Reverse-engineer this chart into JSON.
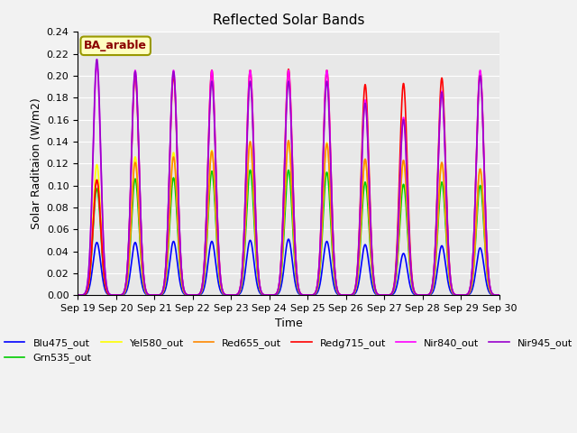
{
  "title": "Reflected Solar Bands",
  "xlabel": "Time",
  "ylabel": "Solar Raditaion (W/m2)",
  "annotation": "BA_arable",
  "ylim": [
    0,
    0.24
  ],
  "series_order": [
    "Blu475_out",
    "Grn535_out",
    "Yel580_out",
    "Red655_out",
    "Redg715_out",
    "Nir840_out",
    "Nir945_out"
  ],
  "colors": {
    "Blu475_out": "#0000ff",
    "Grn535_out": "#00cc00",
    "Yel580_out": "#ffff00",
    "Red655_out": "#ff8800",
    "Redg715_out": "#ff0000",
    "Nir840_out": "#ff00ff",
    "Nir945_out": "#9900cc"
  },
  "days": [
    "Sep 19",
    "Sep 20",
    "Sep 21",
    "Sep 22",
    "Sep 23",
    "Sep 24",
    "Sep 25",
    "Sep 26",
    "Sep 27",
    "Sep 28",
    "Sep 29",
    "Sep 30"
  ],
  "day_peaks": {
    "Blu475_out": [
      0.048,
      0.048,
      0.049,
      0.049,
      0.05,
      0.051,
      0.049,
      0.046,
      0.038,
      0.045,
      0.043
    ],
    "Grn535_out": [
      0.097,
      0.106,
      0.107,
      0.113,
      0.114,
      0.114,
      0.112,
      0.103,
      0.101,
      0.103,
      0.1
    ],
    "Yel580_out": [
      0.119,
      0.126,
      0.13,
      0.132,
      0.139,
      0.14,
      0.139,
      0.124,
      0.122,
      0.12,
      0.115
    ],
    "Red655_out": [
      0.105,
      0.121,
      0.126,
      0.131,
      0.14,
      0.141,
      0.138,
      0.124,
      0.123,
      0.121,
      0.115
    ],
    "Redg715_out": [
      0.105,
      0.2,
      0.2,
      0.205,
      0.205,
      0.206,
      0.205,
      0.192,
      0.193,
      0.198,
      0.204
    ],
    "Nir840_out": [
      0.21,
      0.205,
      0.205,
      0.205,
      0.205,
      0.205,
      0.205,
      0.178,
      0.162,
      0.186,
      0.205
    ],
    "Nir945_out": [
      0.215,
      0.204,
      0.204,
      0.195,
      0.195,
      0.195,
      0.195,
      0.175,
      0.16,
      0.185,
      0.2
    ]
  },
  "sigma": 0.1,
  "plot_bg_color": "#e8e8e8",
  "fig_bg_color": "#f2f2f2",
  "grid_color": "#ffffff",
  "yticks": [
    0.0,
    0.02,
    0.04,
    0.06,
    0.08,
    0.1,
    0.12,
    0.14,
    0.16,
    0.18,
    0.2,
    0.22,
    0.24
  ],
  "linewidth": 1.2,
  "title_fontsize": 11,
  "label_fontsize": 9,
  "tick_fontsize": 8,
  "legend_fontsize": 8
}
